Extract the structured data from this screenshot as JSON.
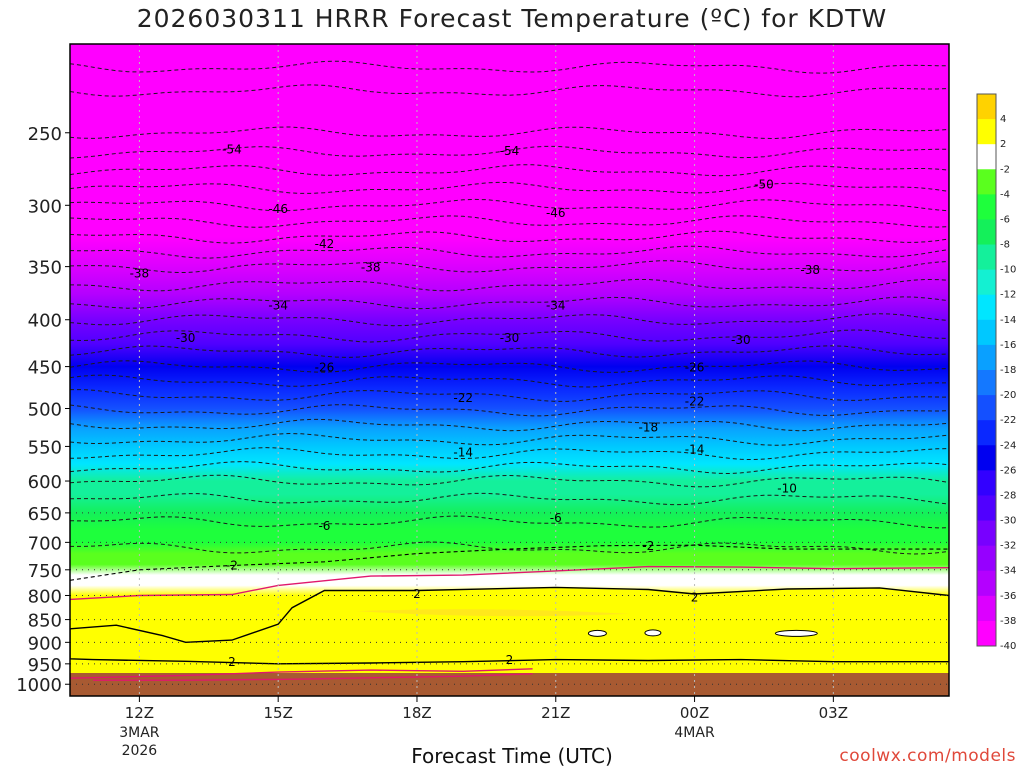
{
  "title": "2026030311 HRRR Forecast Temperature (ºC) for KDTW",
  "xlabel": "Forecast Time (UTC)",
  "credit": "coolwx.com/models",
  "chart_data": {
    "type": "heatmap",
    "title": "2026030311 HRRR Forecast Temperature (ºC) for KDTW",
    "xlabel": "Forecast Time (UTC)",
    "ylabel": "",
    "x_range_hours": [
      -0.5,
      18.5
    ],
    "y_range_hPa": [
      1030,
      200
    ],
    "x_ticks": [
      {
        "hour": 1,
        "label": "12Z",
        "sub": [
          "3MAR",
          "2026"
        ]
      },
      {
        "hour": 4,
        "label": "15Z",
        "sub": []
      },
      {
        "hour": 7,
        "label": "18Z",
        "sub": []
      },
      {
        "hour": 10,
        "label": "21Z",
        "sub": []
      },
      {
        "hour": 13,
        "label": "00Z",
        "sub": [
          "4MAR"
        ]
      },
      {
        "hour": 16,
        "label": "03Z",
        "sub": []
      }
    ],
    "y_ticks": [
      250,
      300,
      350,
      400,
      450,
      500,
      550,
      600,
      650,
      700,
      750,
      800,
      850,
      900,
      950,
      1000
    ],
    "profile": {
      "pressure": [
        1030,
        1000,
        980,
        950,
        925,
        900,
        875,
        850,
        825,
        800,
        780,
        760,
        740,
        720,
        700,
        680,
        650,
        620,
        600,
        575,
        550,
        525,
        500,
        475,
        450,
        425,
        400,
        375,
        350,
        325,
        300,
        275,
        250,
        225,
        200
      ],
      "temp": [
        4,
        3.5,
        2.6,
        3.0,
        3.4,
        3.6,
        3.7,
        3.6,
        3.4,
        2.7,
        1.4,
        -0.5,
        -2.5,
        -3.5,
        -4.5,
        -5.4,
        -6.6,
        -8.5,
        -10,
        -12.5,
        -15,
        -17.6,
        -20.2,
        -23,
        -26,
        -29,
        -32,
        -35,
        -38,
        -42,
        -46,
        -50,
        -54,
        -56,
        -57
      ]
    },
    "contour_labels": [
      {
        "x": 3.0,
        "p": 260,
        "t": "-54"
      },
      {
        "x": 9.0,
        "p": 261,
        "t": "-54"
      },
      {
        "x": 14.5,
        "p": 284,
        "t": "-50"
      },
      {
        "x": 4.0,
        "p": 302,
        "t": "-46"
      },
      {
        "x": 10.0,
        "p": 305,
        "t": "-46"
      },
      {
        "x": 5.0,
        "p": 330,
        "t": "-42"
      },
      {
        "x": 1.0,
        "p": 355,
        "t": "-38"
      },
      {
        "x": 6.0,
        "p": 350,
        "t": "-38"
      },
      {
        "x": 15.5,
        "p": 352,
        "t": "-38"
      },
      {
        "x": 4.0,
        "p": 385,
        "t": "-34"
      },
      {
        "x": 10.0,
        "p": 385,
        "t": "-34"
      },
      {
        "x": 2.0,
        "p": 418,
        "t": "-30"
      },
      {
        "x": 9.0,
        "p": 418,
        "t": "-30"
      },
      {
        "x": 14.0,
        "p": 420,
        "t": "-30"
      },
      {
        "x": 5.0,
        "p": 450,
        "t": "-26"
      },
      {
        "x": 13.0,
        "p": 450,
        "t": "-26"
      },
      {
        "x": 8.0,
        "p": 486,
        "t": "-22"
      },
      {
        "x": 13.0,
        "p": 490,
        "t": "-22"
      },
      {
        "x": 12.0,
        "p": 523,
        "t": "-18"
      },
      {
        "x": 8.0,
        "p": 557,
        "t": "-14"
      },
      {
        "x": 13.0,
        "p": 553,
        "t": "-14"
      },
      {
        "x": 15.0,
        "p": 610,
        "t": "-10"
      },
      {
        "x": 5.0,
        "p": 670,
        "t": "-6"
      },
      {
        "x": 10.0,
        "p": 657,
        "t": "-6"
      },
      {
        "x": 12.0,
        "p": 705,
        "t": "-2"
      },
      {
        "x": 3.0,
        "p": 740,
        "t": "-2"
      },
      {
        "x": 7.0,
        "p": 795,
        "t": "2"
      },
      {
        "x": 13.0,
        "p": 802,
        "t": "2"
      },
      {
        "x": 3.0,
        "p": 943,
        "t": "2"
      },
      {
        "x": 9.0,
        "p": 938,
        "t": "2"
      }
    ],
    "colorbar": {
      "levels": [
        4,
        2,
        -2,
        -4,
        -6,
        -8,
        -10,
        -12,
        -14,
        -16,
        -18,
        -20,
        -22,
        -24,
        -26,
        -28,
        -30,
        -32,
        -34,
        -36,
        -38,
        -40
      ],
      "colors": [
        "#ffd200",
        "#ffff00",
        "#ffffff",
        "#5aff1e",
        "#1eff3c",
        "#14f05a",
        "#14f09b",
        "#14f0d2",
        "#00e6ff",
        "#00c8ff",
        "#0aa0ff",
        "#1478ff",
        "#1450ff",
        "#0a28ff",
        "#0000f0",
        "#3200ff",
        "#5000ff",
        "#7800ff",
        "#9600ff",
        "#b400ff",
        "#dc00ff",
        "#ff00ff"
      ]
    },
    "ground_color": "#a85a32"
  }
}
